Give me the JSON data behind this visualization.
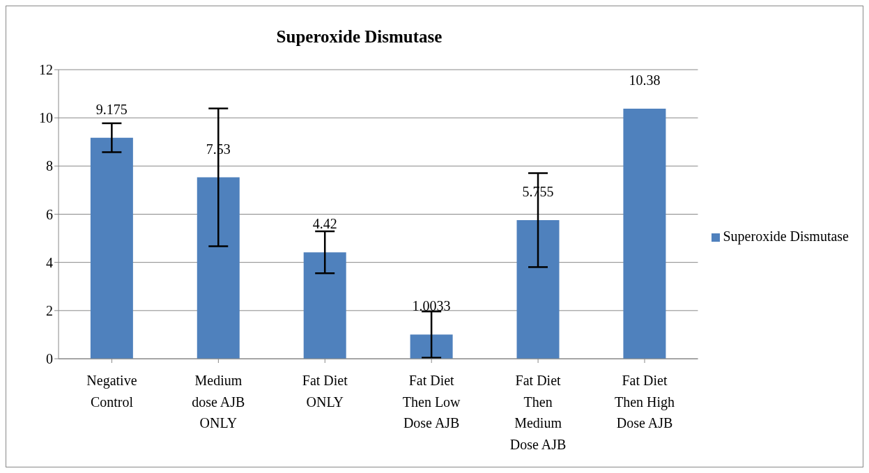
{
  "chart_data": {
    "type": "bar",
    "title": "Superoxide Dismutase",
    "categories": [
      "Negative Control",
      "Medium dose AJB ONLY",
      "Fat Diet ONLY",
      "Fat Diet Then Low Dose AJB",
      "Fat Diet Then Medium Dose AJB",
      "Fat Diet Then High Dose AJB"
    ],
    "series": [
      {
        "name": "Superoxide Dismutase",
        "color": "#4f81bd",
        "values": [
          9.175,
          7.53,
          4.42,
          1.0033,
          5.755,
          10.38
        ],
        "errors": [
          0.6,
          2.86,
          0.87,
          0.96,
          1.95,
          null
        ]
      }
    ],
    "ylim": [
      0,
      12
    ],
    "yticks": [
      0,
      2,
      4,
      6,
      8,
      10,
      12
    ],
    "grid": "y",
    "legend": "right",
    "data_labels": true
  }
}
